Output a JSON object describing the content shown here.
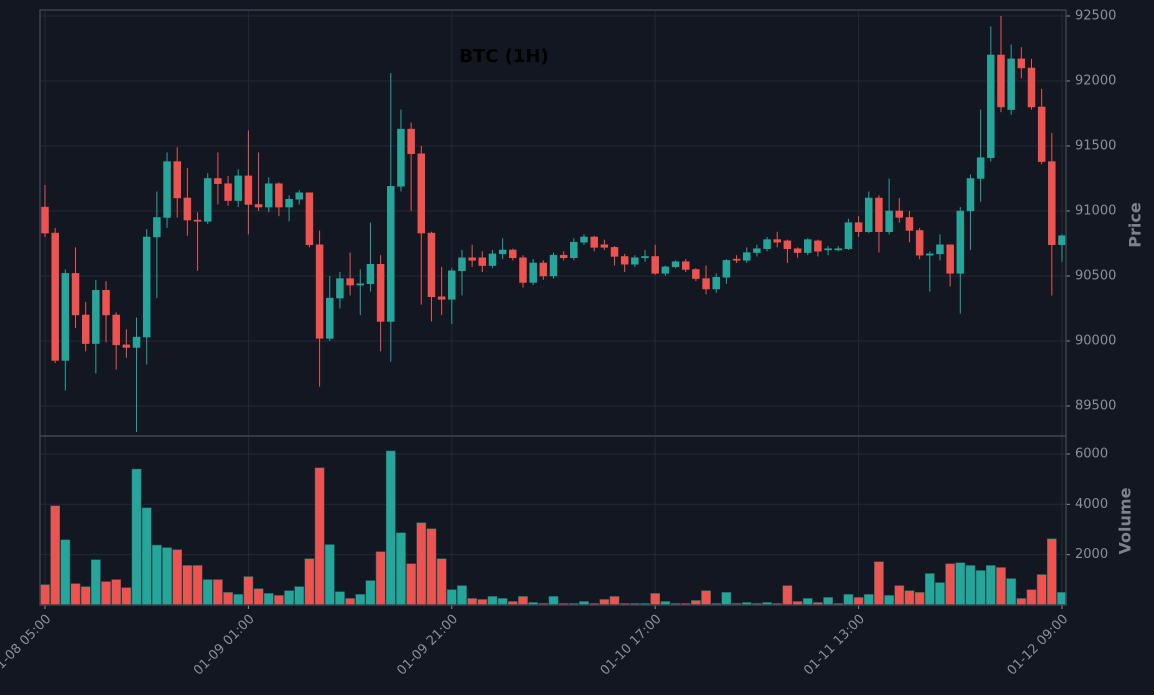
{
  "chart_data": {
    "type": "candlestick",
    "title": "BTC (1H)",
    "ylabel": "Price",
    "categories": [
      "01-08 05:00",
      null,
      null,
      null,
      null,
      null,
      null,
      null,
      null,
      null,
      null,
      null,
      null,
      null,
      null,
      null,
      null,
      null,
      null,
      null,
      "01-09 01:00",
      null,
      null,
      null,
      null,
      null,
      null,
      null,
      null,
      null,
      null,
      null,
      null,
      null,
      null,
      null,
      null,
      null,
      null,
      null,
      "01-09 21:00",
      null,
      null,
      null,
      null,
      null,
      null,
      null,
      null,
      null,
      null,
      null,
      null,
      null,
      null,
      null,
      null,
      null,
      null,
      null,
      "01-10 17:00",
      null,
      null,
      null,
      null,
      null,
      null,
      null,
      null,
      null,
      null,
      null,
      null,
      null,
      null,
      null,
      null,
      null,
      null,
      null,
      "01-11 13:00",
      null,
      null,
      null,
      null,
      null,
      null,
      null,
      null,
      null,
      null,
      null,
      null,
      null,
      null,
      null,
      null,
      null,
      null,
      null,
      "01-12 09:00"
    ],
    "open": [
      91030,
      90830,
      89850,
      90520,
      90200,
      89980,
      90390,
      90200,
      89970,
      89950,
      90030,
      90800,
      90950,
      91380,
      91100,
      90930,
      90920,
      91250,
      91210,
      91080,
      91270,
      91050,
      91030,
      91210,
      91030,
      91090,
      91140,
      90740,
      90020,
      90330,
      90480,
      90430,
      90440,
      90590,
      90150,
      91190,
      91630,
      91440,
      90830,
      90340,
      90320,
      90540,
      90640,
      90640,
      90580,
      90670,
      90700,
      90640,
      90450,
      90600,
      90500,
      90660,
      90640,
      90760,
      90800,
      90740,
      90720,
      90650,
      90590,
      90640,
      90650,
      90520,
      90570,
      90610,
      90550,
      90480,
      90400,
      90490,
      90630,
      90620,
      90680,
      90710,
      90780,
      90770,
      90710,
      90680,
      90770,
      90700,
      90700,
      90710,
      90910,
      90840,
      91100,
      90840,
      91000,
      90950,
      90850,
      90660,
      90670,
      90740,
      90520,
      91000,
      91250,
      91410,
      92200,
      91780,
      92170,
      92100,
      91800,
      91380,
      90740
    ],
    "high": [
      91200,
      90870,
      90550,
      90720,
      90300,
      90470,
      90460,
      90220,
      90090,
      90180,
      90860,
      91150,
      91450,
      91490,
      91330,
      90990,
      91290,
      91450,
      91270,
      91320,
      91620,
      91450,
      91260,
      91220,
      91120,
      91160,
      91140,
      90850,
      90500,
      90530,
      90680,
      90550,
      90910,
      90660,
      92060,
      91780,
      91680,
      91500,
      90840,
      90570,
      90560,
      90700,
      90740,
      90690,
      90700,
      90790,
      90710,
      90660,
      90630,
      90620,
      90680,
      90690,
      90790,
      90820,
      90810,
      90780,
      90730,
      90670,
      90660,
      90700,
      90740,
      90580,
      90620,
      90630,
      90560,
      90580,
      90520,
      90630,
      90660,
      90720,
      90740,
      90800,
      90840,
      90780,
      90720,
      90790,
      90780,
      90730,
      90730,
      90940,
      90960,
      91150,
      91120,
      91250,
      91100,
      91000,
      90870,
      90690,
      90820,
      90740,
      91030,
      91280,
      91780,
      92420,
      92500,
      92280,
      92260,
      92170,
      91940,
      91600,
      90820
    ],
    "low": [
      90800,
      89830,
      89620,
      90100,
      89920,
      89750,
      89990,
      89780,
      89870,
      89300,
      89820,
      90330,
      90870,
      90950,
      90810,
      90540,
      90900,
      91050,
      91040,
      91030,
      90820,
      91000,
      90990,
      90960,
      90920,
      91050,
      90720,
      89650,
      90000,
      90250,
      90350,
      90200,
      90380,
      89920,
      89840,
      91150,
      91000,
      90280,
      90150,
      90200,
      90130,
      90350,
      90570,
      90530,
      90560,
      90630,
      90620,
      90410,
      90430,
      90470,
      90480,
      90620,
      90620,
      90740,
      90690,
      90700,
      90580,
      90530,
      90570,
      90610,
      90510,
      90500,
      90560,
      90530,
      90460,
      90360,
      90370,
      90440,
      90600,
      90600,
      90650,
      90690,
      90720,
      90600,
      90640,
      90660,
      90650,
      90660,
      90690,
      90700,
      90800,
      90830,
      90680,
      90820,
      90910,
      90760,
      90630,
      90380,
      90620,
      90420,
      90210,
      90700,
      91070,
      91380,
      91760,
      91740,
      92020,
      91780,
      91360,
      90350,
      90610
    ],
    "close": [
      90830,
      89850,
      90520,
      90200,
      89980,
      90390,
      90200,
      89970,
      89950,
      90030,
      90800,
      90950,
      91380,
      91100,
      90930,
      90920,
      91250,
      91210,
      91080,
      91270,
      91050,
      91030,
      91210,
      91030,
      91090,
      91140,
      90740,
      90020,
      90330,
      90480,
      90430,
      90440,
      90590,
      90150,
      91190,
      91630,
      91440,
      90830,
      90340,
      90320,
      90540,
      90640,
      90620,
      90580,
      90670,
      90700,
      90640,
      90450,
      90600,
      90500,
      90660,
      90640,
      90760,
      90800,
      90720,
      90720,
      90650,
      90590,
      90640,
      90650,
      90520,
      90570,
      90610,
      90550,
      90480,
      90400,
      90490,
      90620,
      90620,
      90680,
      90710,
      90780,
      90760,
      90710,
      90680,
      90780,
      90690,
      90710,
      90710,
      90910,
      90840,
      91100,
      90840,
      91000,
      90950,
      90850,
      90660,
      90670,
      90740,
      90520,
      91000,
      91250,
      91410,
      92200,
      91800,
      92170,
      92100,
      91800,
      91380,
      90740,
      90810
    ],
    "ylim": [
      89269,
      92546
    ],
    "yticks": [
      89500,
      90000,
      90500,
      91000,
      91500,
      92000,
      92500
    ],
    "up_color": "#26a69a",
    "down_color": "#ef5350",
    "grid": true,
    "volume": {
      "label": "Volume",
      "values": [
        810,
        3940,
        2590,
        850,
        730,
        1800,
        930,
        1010,
        690,
        5400,
        3860,
        2380,
        2280,
        2200,
        1570,
        1570,
        1010,
        1010,
        500,
        420,
        1130,
        650,
        460,
        380,
        570,
        730,
        1840,
        5450,
        2400,
        530,
        260,
        420,
        970,
        2120,
        6120,
        2870,
        1640,
        3270,
        3030,
        1840,
        610,
        770,
        260,
        220,
        340,
        260,
        140,
        340,
        100,
        60,
        340,
        60,
        60,
        140,
        60,
        220,
        340,
        60,
        60,
        60,
        460,
        140,
        60,
        60,
        180,
        570,
        60,
        500,
        60,
        100,
        60,
        100,
        60,
        770,
        140,
        260,
        100,
        300,
        60,
        420,
        300,
        420,
        1720,
        380,
        770,
        570,
        500,
        1250,
        890,
        1640,
        1680,
        1570,
        1370,
        1570,
        1490,
        1050,
        260,
        610,
        1210,
        2630,
        500
      ],
      "ylim": [
        0,
        6713
      ],
      "yticks": [
        2000,
        4000,
        6000
      ]
    }
  }
}
